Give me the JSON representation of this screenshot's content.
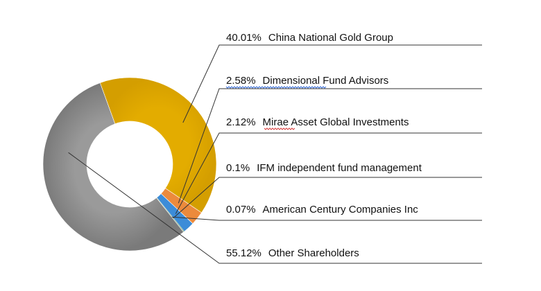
{
  "chart_data": {
    "type": "pie",
    "donut": true,
    "slices": [
      {
        "percent_label": "40.01%",
        "name": "China National Gold Group",
        "value": 40.01,
        "color": "#E3AC00"
      },
      {
        "percent_label": "2.58%",
        "name": "Dimensional Fund Advisors",
        "value": 2.58,
        "color": "#EC8A3C"
      },
      {
        "percent_label": "2.12%",
        "name": "Mirae Asset Global Investments",
        "value": 2.12,
        "color": "#3C8CD8"
      },
      {
        "percent_label": "0.1%",
        "name": "IFM independent fund management",
        "value": 0.1,
        "color": "#5E9C34"
      },
      {
        "percent_label": "0.07%",
        "name": "American Century Companies Inc",
        "value": 0.07,
        "color": "#2A5FA8"
      },
      {
        "percent_label": "55.12%",
        "name": "Other Shareholders",
        "value": 55.12,
        "color": "#8C8C8C"
      }
    ]
  }
}
